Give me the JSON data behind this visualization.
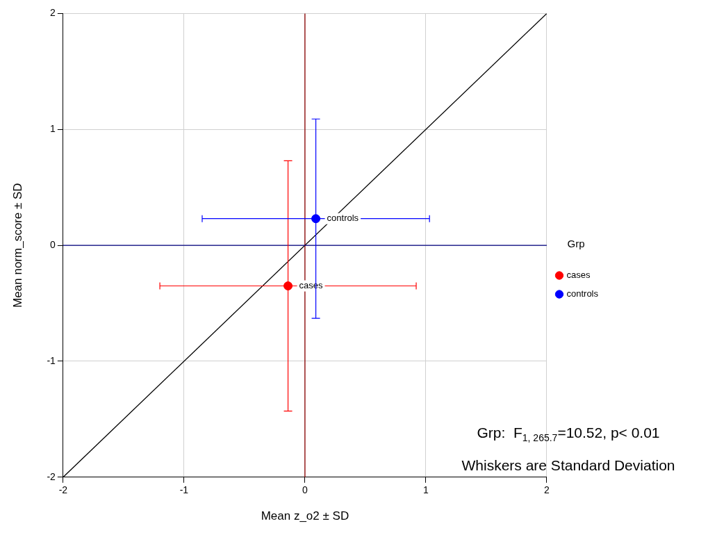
{
  "chart_data": {
    "type": "scatter",
    "xlabel": "Mean z_o2 ± SD",
    "ylabel": "Mean norm_score ± SD",
    "legend_title": "Grp",
    "series": [
      {
        "name": "cases",
        "color": "#ff0000",
        "x": [
          -0.14
        ],
        "values": [
          -0.35
        ],
        "marker": "circle",
        "errors": [
          1.08
        ],
        "xerrors": [
          1.06
        ]
      },
      {
        "name": "controls",
        "color": "#0000ff",
        "x": [
          0.09
        ],
        "values": [
          0.23
        ],
        "marker": "circle",
        "errors": [
          0.86
        ],
        "xerrors": [
          0.94
        ]
      },
      {
        "type": "line",
        "color": "#000000",
        "marker": "none",
        "x": [
          -2,
          2
        ],
        "values": [
          -2,
          2
        ]
      }
    ],
    "xlim": [
      -2,
      2
    ],
    "ylim": [
      -2,
      2
    ],
    "xticks": [
      -2,
      -1,
      0,
      1,
      2
    ],
    "yticks": [
      -2,
      -1,
      0,
      1,
      2
    ],
    "ref_lines": [
      {
        "axis": "x",
        "value": 0,
        "color": "#8b0000"
      },
      {
        "axis": "y",
        "value": 0,
        "color": "#000080"
      }
    ],
    "annotations": [
      "Grp:  F$_{1, 265.7}$=10.52, p< 0.01",
      "Whiskers are Standard Deviation"
    ],
    "grid": true,
    "legend": "right"
  }
}
